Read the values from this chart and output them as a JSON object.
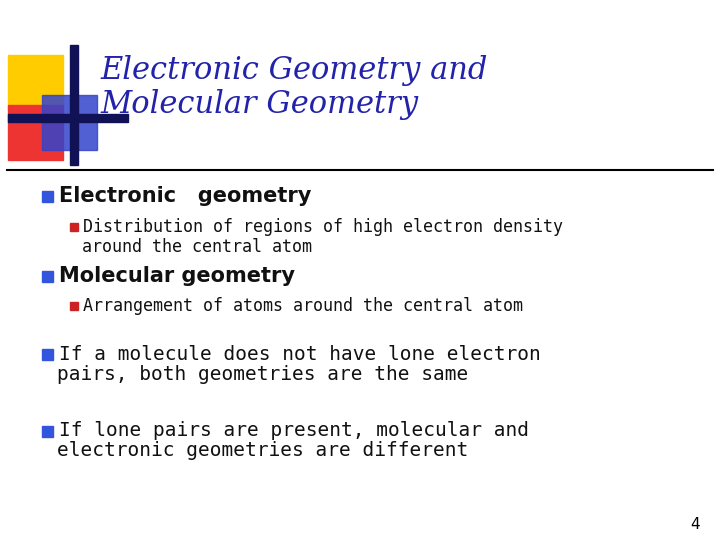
{
  "background_color": "#ffffff",
  "title_line1": "Electronic Geometry and",
  "title_line2": "Molecular Geometry",
  "title_color": "#2222aa",
  "title_fontsize": 22,
  "line_color": "#000000",
  "bullet1_text": "Electronic   geometry",
  "bullet1_color": "#111111",
  "bullet1_fontsize": 15,
  "bullet1_square_color": "#3355dd",
  "sub1_line1": "Distribution of regions of high electron density",
  "sub1_line2": "around the central atom",
  "sub1_color": "#111111",
  "sub1_fontsize": 12,
  "sub1_square_color": "#cc2222",
  "bullet2_text": "Molecular geometry",
  "bullet2_color": "#111111",
  "bullet2_fontsize": 15,
  "bullet2_square_color": "#3355dd",
  "sub2_text": "Arrangement of atoms around the central atom",
  "sub2_color": "#111111",
  "sub2_fontsize": 12,
  "sub2_square_color": "#cc2222",
  "bullet3_line1": "If a molecule does not have lone electron",
  "bullet3_line2": "pairs, both geometries are the same",
  "bullet3_color": "#111111",
  "bullet3_fontsize": 14,
  "bullet3_square_color": "#3355dd",
  "bullet4_line1": "If lone pairs are present, molecular and",
  "bullet4_line2": "electronic geometries are different",
  "bullet4_color": "#111111",
  "bullet4_fontsize": 14,
  "bullet4_square_color": "#3355dd",
  "page_number": "4",
  "deco_yellow": "#ffcc00",
  "deco_red": "#ee3333",
  "deco_blue": "#3344cc",
  "deco_darkblue": "#111155"
}
